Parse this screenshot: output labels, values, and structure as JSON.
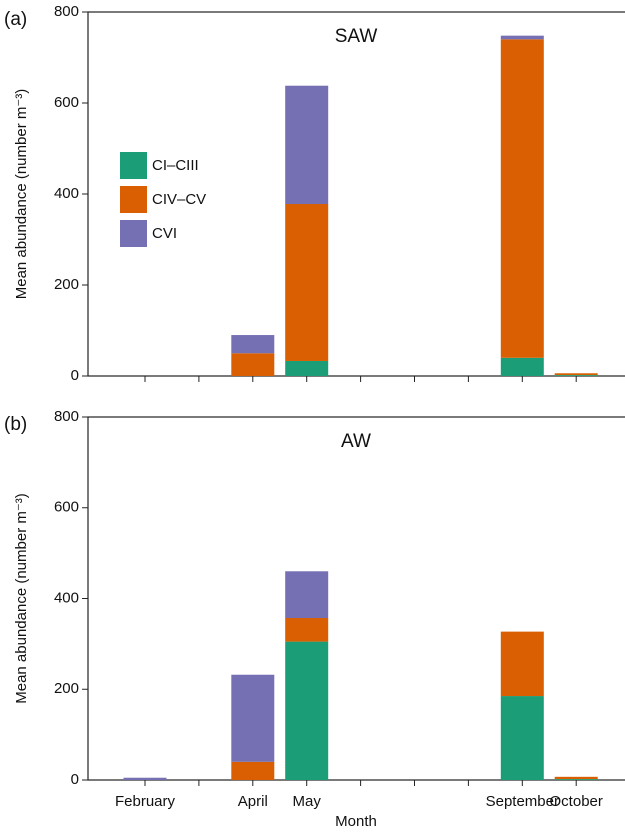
{
  "chart_data": [
    {
      "type": "stacked-bar",
      "panel_label": "(a)",
      "annotation": "SAW",
      "ylabel": "Mean abundance (number m⁻³)",
      "ylim": [
        0,
        800
      ],
      "yticks": [
        0,
        200,
        400,
        600,
        800
      ],
      "legend": "upper left",
      "series": [
        {
          "name": "CI–CIII",
          "color": "#1b9e77",
          "values": [
            0,
            null,
            0,
            33,
            null,
            null,
            null,
            40,
            2
          ]
        },
        {
          "name": "CIV–CV",
          "color": "#d95f02",
          "values": [
            0,
            null,
            50,
            345,
            null,
            null,
            null,
            700,
            4
          ]
        },
        {
          "name": "CVI",
          "color": "#7570b3",
          "values": [
            0,
            null,
            40,
            260,
            null,
            null,
            null,
            8,
            0
          ]
        }
      ]
    },
    {
      "type": "stacked-bar",
      "panel_label": "(b)",
      "annotation": "AW",
      "ylabel": "Mean abundance (number m⁻³)",
      "xlabel": "Month",
      "categories": [
        "February",
        null,
        "April",
        "May",
        null,
        null,
        null,
        "September",
        "October"
      ],
      "ylim": [
        0,
        800
      ],
      "yticks": [
        0,
        200,
        400,
        600,
        800
      ],
      "series": [
        {
          "color": "#1b9e77",
          "values": [
            0,
            null,
            0,
            305,
            null,
            null,
            null,
            185,
            2
          ]
        },
        {
          "color": "#d95f02",
          "values": [
            0,
            null,
            40,
            52,
            null,
            null,
            null,
            142,
            5
          ]
        },
        {
          "color": "#7570b3",
          "values": [
            5,
            null,
            192,
            103,
            null,
            null,
            null,
            0,
            0
          ]
        }
      ]
    }
  ]
}
